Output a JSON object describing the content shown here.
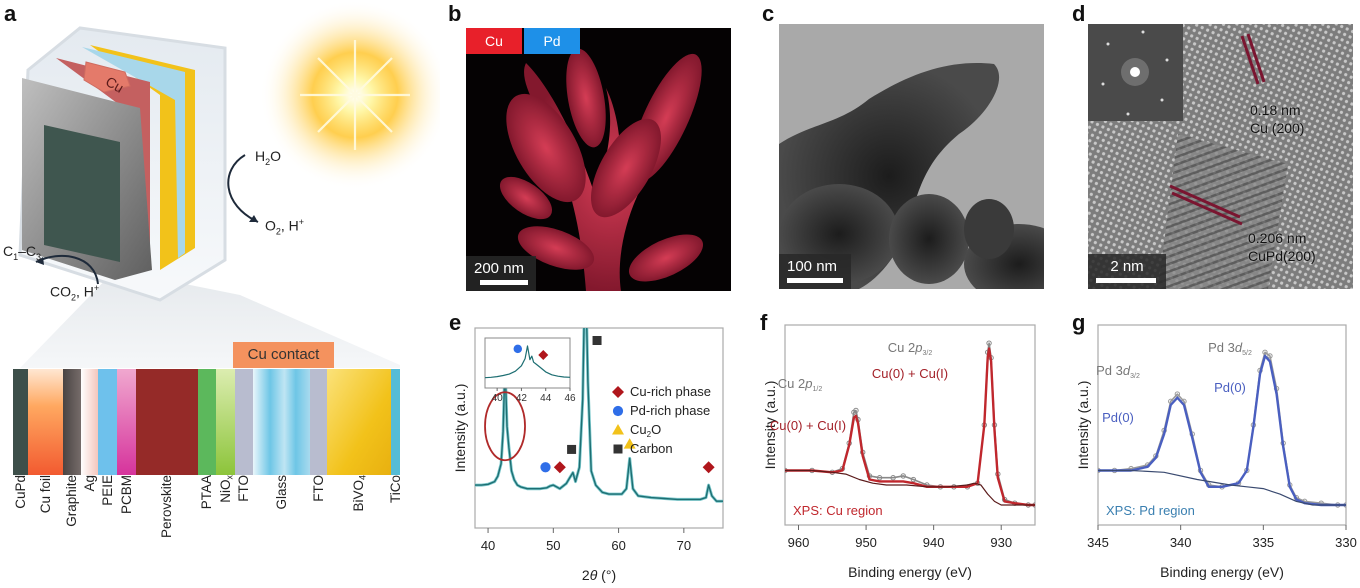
{
  "figure": {
    "panel_labels": [
      "a",
      "b",
      "c",
      "d",
      "e",
      "f",
      "g"
    ]
  },
  "panel_a": {
    "device_top_label": "Cu",
    "reaction_right_in": "H2O",
    "reaction_right_out": "O2, H+",
    "reaction_left_in": "CO2, H+",
    "reaction_left_out": "C1–C3",
    "cu_contact_label": "Cu contact",
    "layers": [
      {
        "name": "CuPd",
        "color": "#3d4f4a"
      },
      {
        "name": "Cu foil",
        "color": "#f99a5a"
      },
      {
        "name": "Graphite",
        "color": "#5a5250"
      },
      {
        "name": "Ag",
        "color": "#f7d9d2"
      },
      {
        "name": "PEIE",
        "color": "#6ec1ec"
      },
      {
        "name": "PCBM",
        "color": "#e079b8"
      },
      {
        "name": "Perovskite",
        "color": "#952a28"
      },
      {
        "name": "PTAA",
        "color": "#5cb85c"
      },
      {
        "name": "NiOx",
        "color": "#a9d468"
      },
      {
        "name": "FTO",
        "color": "#b8bccf"
      },
      {
        "name": "Glass",
        "color": "#7fcdea"
      },
      {
        "name": "FTO",
        "color": "#b8bccf"
      },
      {
        "name": "BiVO4",
        "color": "#f2c21a"
      },
      {
        "name": "TiCo",
        "color": "#55bcd6"
      }
    ]
  },
  "panel_b": {
    "legend": [
      {
        "label": "Cu",
        "color": "#e8202a"
      },
      {
        "label": "Pd",
        "color": "#1e90e8"
      }
    ],
    "scale_bar": "200 nm"
  },
  "panel_c": {
    "scale_bar": "100 nm"
  },
  "panel_d": {
    "scale_bar": "2 nm",
    "annotations": [
      {
        "spacing": "0.18 nm",
        "plane": "Cu (200)"
      },
      {
        "spacing": "0.206 nm",
        "plane": "CuPd(200)"
      }
    ]
  },
  "chart_data": [
    {
      "id": "e",
      "type": "line",
      "title": "",
      "xlabel": "2θ (°)",
      "ylabel": "Intensity (a.u.)",
      "xlim": [
        38,
        76
      ],
      "xticks": [
        40,
        50,
        60,
        70
      ],
      "grid": false,
      "series": [
        {
          "name": "XRD pattern",
          "color": "#1d6e72",
          "x": [
            38,
            39,
            40,
            41,
            41.5,
            42,
            42.3,
            42.6,
            42.9,
            43.2,
            43.6,
            44,
            44.5,
            45,
            46,
            47,
            48,
            49,
            49.5,
            50,
            50.5,
            51,
            52,
            52.5,
            53,
            53.4,
            54,
            54.5,
            54.9,
            55.3,
            55.8,
            56.5,
            57.5,
            58.5,
            59.5,
            60.5,
            61.2,
            61.7,
            62.2,
            63,
            65,
            67,
            69,
            71,
            72.5,
            73.4,
            73.8,
            74.3,
            75,
            76
          ],
          "y": [
            0.12,
            0.12,
            0.125,
            0.14,
            0.17,
            0.24,
            0.42,
            0.8,
            0.45,
            0.33,
            0.2,
            0.15,
            0.12,
            0.11,
            0.1,
            0.1,
            0.1,
            0.105,
            0.115,
            0.12,
            0.11,
            0.1,
            0.13,
            0.16,
            0.19,
            0.14,
            0.22,
            0.6,
            1.4,
            0.7,
            0.2,
            0.12,
            0.08,
            0.07,
            0.07,
            0.07,
            0.1,
            0.27,
            0.1,
            0.06,
            0.05,
            0.045,
            0.04,
            0.04,
            0.04,
            0.05,
            0.12,
            0.06,
            0.03,
            0.03
          ]
        }
      ],
      "ylim": [
        -0.12,
        1.0
      ],
      "markers": [
        {
          "type": "circle",
          "phase": "Pd-rich phase",
          "x": 48.8,
          "y": 0.22
        },
        {
          "type": "diamond",
          "phase": "Cu-rich phase",
          "x": 51,
          "y": 0.22
        },
        {
          "type": "square",
          "phase": "Carbon",
          "x": 52.8,
          "y": 0.32
        },
        {
          "type": "square",
          "phase": "Carbon",
          "x": 56.7,
          "y": 0.93
        },
        {
          "type": "triangle",
          "phase": "Cu2O",
          "x": 61.7,
          "y": 0.35
        },
        {
          "type": "diamond",
          "phase": "Cu-rich phase",
          "x": 73.8,
          "y": 0.22
        }
      ],
      "legend": {
        "placement": "top-right",
        "entries": [
          {
            "type": "diamond",
            "label": "Cu-rich phase",
            "color": "#b0161c"
          },
          {
            "type": "circle",
            "label": "Pd-rich phase",
            "color": "#2f6ee8"
          },
          {
            "type": "triangle",
            "label": "Cu2O",
            "color": "#f2c21a"
          },
          {
            "type": "square",
            "label": "Carbon",
            "color": "#333333"
          }
        ]
      },
      "inset": {
        "xlim": [
          39,
          46
        ],
        "xticks": [
          40,
          42,
          44,
          46
        ],
        "x": [
          39,
          39.5,
          40,
          40.5,
          41,
          41.5,
          42,
          42.3,
          42.5,
          42.7,
          42.85,
          43,
          43.2,
          43.5,
          44,
          44.5,
          45,
          45.5,
          46
        ],
        "y": [
          0.12,
          0.13,
          0.15,
          0.18,
          0.22,
          0.3,
          0.45,
          0.65,
          1.0,
          0.62,
          0.72,
          0.55,
          0.5,
          0.42,
          0.28,
          0.2,
          0.16,
          0.14,
          0.13
        ],
        "markers": [
          {
            "type": "circle",
            "x": 41.7,
            "y": 0.92
          },
          {
            "type": "diamond",
            "x": 43.8,
            "y": 0.75
          }
        ]
      },
      "annotation": "ellipse around peak at ~42.6°"
    },
    {
      "id": "f",
      "type": "line",
      "title": "",
      "xlabel": "Binding energy (eV)",
      "ylabel": "Intensity (a.u.)",
      "xlim": [
        962,
        925
      ],
      "xticks": [
        960,
        950,
        940,
        930
      ],
      "grid": false,
      "region_label": "XPS: Cu region",
      "peak_labels": [
        {
          "text": "Cu 2p1/2",
          "x": 951.5,
          "kind": "orbital"
        },
        {
          "text": "Cu(0) + Cu(I)",
          "x": 951.5,
          "kind": "state"
        },
        {
          "text": "Cu 2p3/2",
          "x": 931.8,
          "kind": "orbital"
        },
        {
          "text": "Cu(0) + Cu(I)",
          "x": 931.8,
          "kind": "state"
        }
      ],
      "ylim": [
        0,
        1.1
      ],
      "series": [
        {
          "name": "Data",
          "color": "#888888",
          "x": [
            962,
            958,
            955,
            953.5,
            952.5,
            951.8,
            951.5,
            951.2,
            950.5,
            949.5,
            948,
            946,
            944.5,
            943,
            941,
            939,
            937,
            935,
            933.5,
            932.5,
            932,
            931.8,
            931.5,
            931,
            930.5,
            929.5,
            928,
            926,
            925
          ],
          "y": [
            0.3,
            0.3,
            0.29,
            0.31,
            0.45,
            0.62,
            0.63,
            0.58,
            0.4,
            0.27,
            0.26,
            0.26,
            0.27,
            0.25,
            0.22,
            0.21,
            0.21,
            0.21,
            0.23,
            0.55,
            0.95,
            1.0,
            0.92,
            0.55,
            0.28,
            0.14,
            0.12,
            0.11,
            0.11
          ]
        },
        {
          "name": "Fit",
          "color": "#c0272d",
          "x": [
            962,
            958,
            955,
            953.5,
            952.5,
            951.8,
            951.5,
            951.2,
            950.5,
            949.5,
            948,
            946,
            944.5,
            943,
            941,
            939,
            937,
            935,
            933.5,
            932.5,
            932,
            931.8,
            931.5,
            931,
            930.5,
            929.5,
            928,
            926,
            925
          ],
          "y": [
            0.3,
            0.3,
            0.29,
            0.3,
            0.44,
            0.59,
            0.6,
            0.56,
            0.38,
            0.25,
            0.24,
            0.24,
            0.24,
            0.23,
            0.21,
            0.21,
            0.21,
            0.21,
            0.23,
            0.55,
            0.92,
            0.97,
            0.9,
            0.52,
            0.26,
            0.13,
            0.12,
            0.11,
            0.11
          ]
        },
        {
          "name": "Background",
          "color": "#5a1a1a",
          "x": [
            962,
            958,
            955,
            953,
            951,
            949,
            947,
            944,
            941,
            938,
            935,
            934,
            933,
            932,
            931,
            930,
            928,
            925
          ],
          "y": [
            0.3,
            0.3,
            0.29,
            0.28,
            0.25,
            0.23,
            0.22,
            0.22,
            0.21,
            0.21,
            0.22,
            0.23,
            0.22,
            0.17,
            0.13,
            0.11,
            0.11,
            0.11
          ]
        }
      ]
    },
    {
      "id": "g",
      "type": "line",
      "title": "",
      "xlabel": "Binding energy (eV)",
      "ylabel": "Intensity (a.u.)",
      "xlim": [
        345,
        330
      ],
      "xticks": [
        345,
        340,
        335,
        330
      ],
      "grid": false,
      "region_label": "XPS: Pd region",
      "peak_labels": [
        {
          "text": "Pd 3d3/2",
          "x": 340.2,
          "kind": "orbital"
        },
        {
          "text": "Pd(0)",
          "x": 340.2,
          "kind": "state"
        },
        {
          "text": "Pd 3d5/2",
          "x": 334.8,
          "kind": "orbital"
        },
        {
          "text": "Pd(0)",
          "x": 334.8,
          "kind": "state"
        }
      ],
      "ylim": [
        0,
        1.1
      ],
      "series": [
        {
          "name": "Data",
          "color": "#999999",
          "x": [
            345,
            344,
            343,
            342,
            341.5,
            341,
            340.6,
            340.2,
            339.8,
            339.3,
            338.8,
            338.3,
            337.5,
            336.5,
            336,
            335.6,
            335.2,
            334.9,
            334.6,
            334.2,
            333.8,
            333.4,
            333,
            332.5,
            331.5,
            330.5,
            330
          ],
          "y": [
            0.3,
            0.3,
            0.31,
            0.33,
            0.38,
            0.52,
            0.68,
            0.72,
            0.68,
            0.5,
            0.3,
            0.22,
            0.21,
            0.23,
            0.3,
            0.55,
            0.85,
            0.95,
            0.93,
            0.75,
            0.45,
            0.22,
            0.15,
            0.13,
            0.12,
            0.11,
            0.11
          ]
        },
        {
          "name": "Fit",
          "color": "#4a5fc0",
          "x": [
            345,
            344,
            343,
            342,
            341.5,
            341,
            340.6,
            340.2,
            339.8,
            339.3,
            338.8,
            338.3,
            337.5,
            336.5,
            336,
            335.6,
            335.2,
            334.9,
            334.6,
            334.2,
            333.8,
            333.4,
            333,
            332.5,
            331.5,
            330.5,
            330
          ],
          "y": [
            0.3,
            0.3,
            0.3,
            0.32,
            0.37,
            0.5,
            0.66,
            0.7,
            0.66,
            0.48,
            0.29,
            0.21,
            0.21,
            0.23,
            0.3,
            0.54,
            0.83,
            0.93,
            0.9,
            0.72,
            0.43,
            0.21,
            0.14,
            0.12,
            0.11,
            0.11,
            0.11
          ]
        },
        {
          "name": "Background",
          "color": "#3a4a70",
          "x": [
            345,
            343,
            341,
            339,
            337,
            336,
            335,
            334,
            333,
            332,
            331,
            330
          ],
          "y": [
            0.3,
            0.3,
            0.29,
            0.25,
            0.22,
            0.21,
            0.2,
            0.17,
            0.13,
            0.11,
            0.11,
            0.11
          ]
        }
      ]
    }
  ]
}
